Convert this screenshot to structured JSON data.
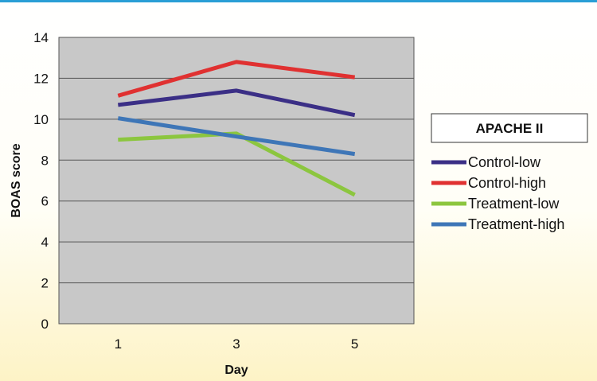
{
  "chart_data": {
    "type": "line",
    "categories": [
      "1",
      "3",
      "5"
    ],
    "xlabel": "Day",
    "ylabel": "BOAS score",
    "ylim": [
      0,
      14
    ],
    "yticks": [
      "0",
      "2",
      "4",
      "6",
      "8",
      "10",
      "12",
      "14"
    ],
    "grid": "horizontal",
    "plot_background": "#c8c8c8",
    "legend": {
      "title": "APACHE II",
      "position": "right"
    },
    "series": [
      {
        "name": "Control-low",
        "values": [
          10.7,
          11.4,
          10.2
        ],
        "color": "#3b2f86"
      },
      {
        "name": "Control-high",
        "values": [
          11.15,
          12.8,
          12.05
        ],
        "color": "#e03131"
      },
      {
        "name": "Treatment-low",
        "values": [
          9.0,
          9.3,
          6.3
        ],
        "color": "#8cc63f"
      },
      {
        "name": "Treatment-high",
        "values": [
          10.05,
          9.15,
          8.3
        ],
        "color": "#3e76b7"
      }
    ]
  }
}
